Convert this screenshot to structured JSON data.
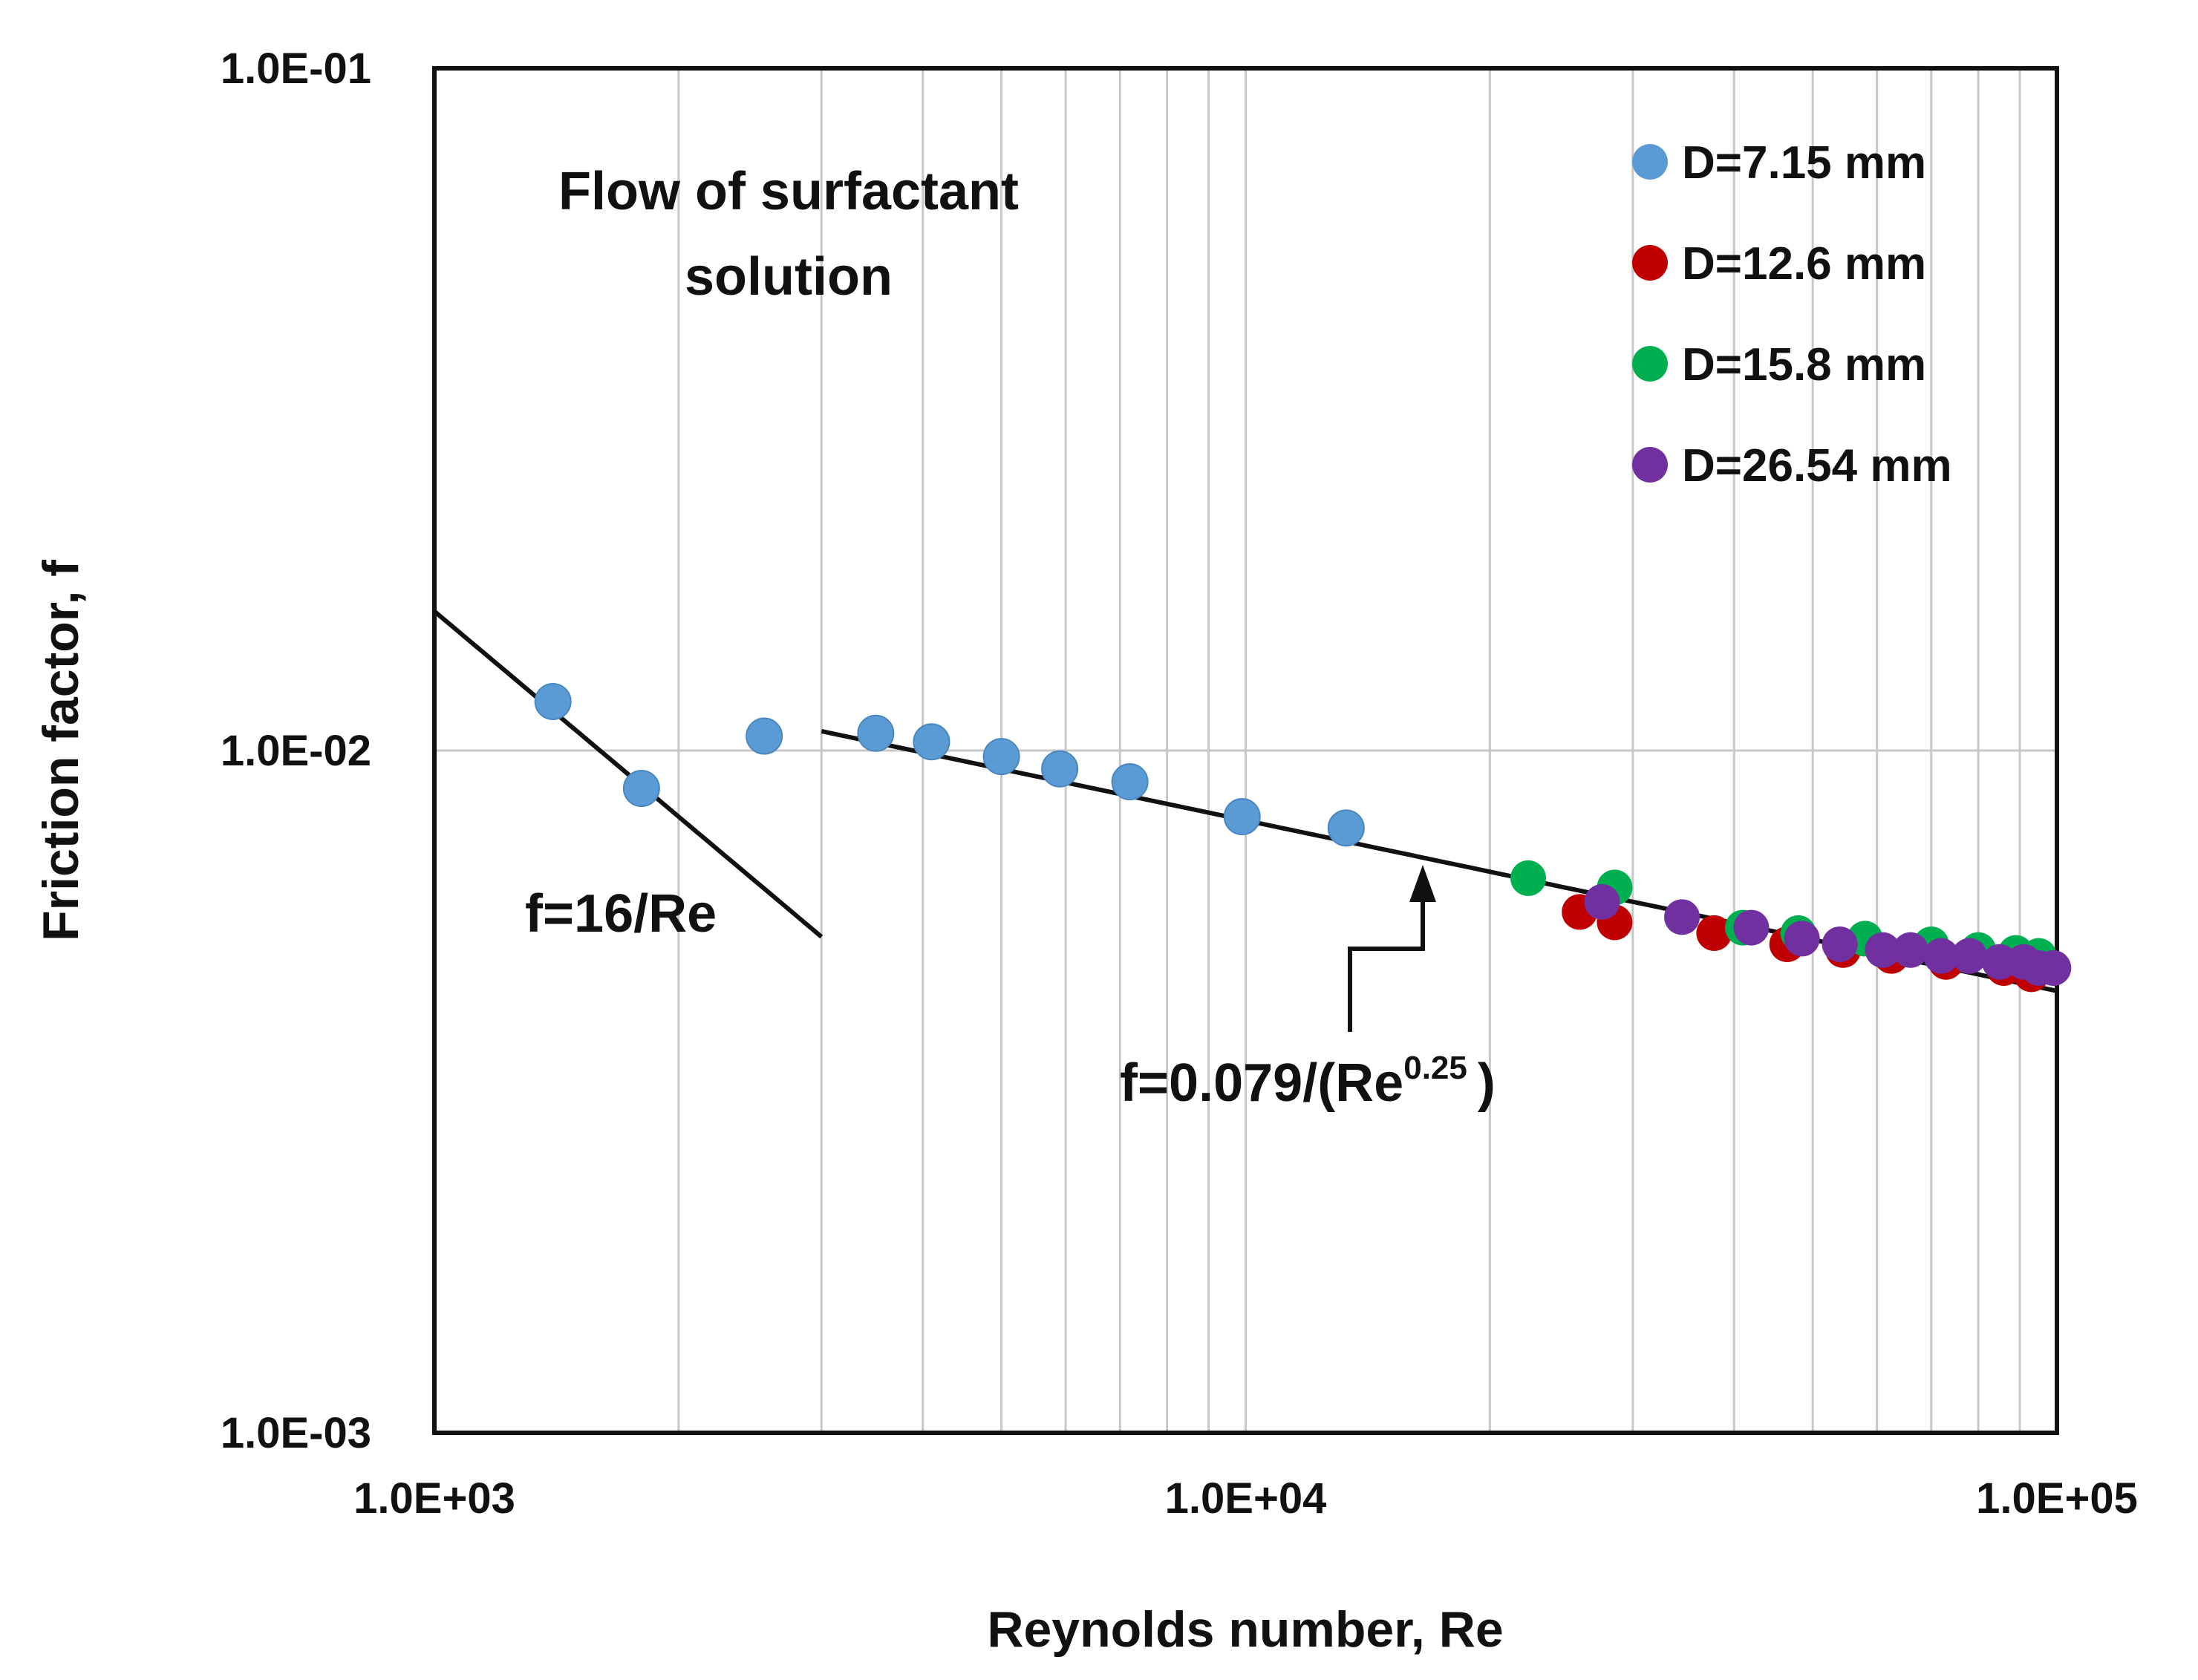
{
  "chart_data": {
    "type": "scatter",
    "title": "",
    "xlabel": "Reynolds number, Re",
    "ylabel": "Friction factor, f",
    "xscale": "log",
    "yscale": "log",
    "xlim": [
      1000,
      100000
    ],
    "ylim": [
      0.001,
      0.1
    ],
    "x_tick_labels": [
      "1.0E+03",
      "1.0E+04",
      "1.0E+05"
    ],
    "x_tick_values": [
      1000,
      10000,
      100000
    ],
    "y_tick_labels": [
      "1.0E-01",
      "1.0E-02",
      "1.0E-03"
    ],
    "y_tick_values": [
      0.1,
      0.01,
      0.001
    ],
    "grid": true,
    "legend_position": "top-right",
    "annotations": {
      "title_note_line1": "Flow of surfactant",
      "title_note_line2": "solution",
      "laminar_label": "f=16/Re",
      "turbulent_label_main": "f=0.079/(Re",
      "turbulent_label_exp": "0.25",
      "turbulent_label_close": ")"
    },
    "reference_lines": [
      {
        "name": "laminar",
        "formula": "f=16/Re",
        "x_range": [
          1000,
          3000
        ],
        "coef": 16,
        "exponent": -1
      },
      {
        "name": "turbulent",
        "formula": "f=0.079/(Re^0.25)",
        "x_range": [
          3000,
          100000
        ],
        "coef": 0.079,
        "exponent": -0.25
      }
    ],
    "series": [
      {
        "name": "D=7.15 mm",
        "color": "#5b9bd5",
        "points": [
          [
            1400,
            0.0118
          ],
          [
            1800,
            0.0088
          ],
          [
            2550,
            0.0105
          ],
          [
            3500,
            0.0106
          ],
          [
            4100,
            0.0103
          ],
          [
            5000,
            0.0098
          ],
          [
            5900,
            0.0094
          ],
          [
            7200,
            0.009
          ],
          [
            9900,
            0.008
          ],
          [
            13300,
            0.0077
          ]
        ]
      },
      {
        "name": "D=12.6 mm",
        "color": "#c00000",
        "points": [
          [
            25800,
            0.0058
          ],
          [
            28500,
            0.0056
          ],
          [
            37800,
            0.0054
          ],
          [
            46500,
            0.0052
          ],
          [
            54500,
            0.0051
          ],
          [
            62500,
            0.005
          ],
          [
            73000,
            0.0049
          ],
          [
            86000,
            0.0048
          ],
          [
            93000,
            0.0047
          ]
        ]
      },
      {
        "name": "D=15.8 mm",
        "color": "#00b050",
        "points": [
          [
            22300,
            0.0065
          ],
          [
            28500,
            0.0063
          ],
          [
            41000,
            0.0055
          ],
          [
            48000,
            0.0054
          ],
          [
            58000,
            0.0053
          ],
          [
            70000,
            0.0052
          ],
          [
            80000,
            0.0051
          ],
          [
            89000,
            0.00505
          ],
          [
            95000,
            0.005
          ]
        ]
      },
      {
        "name": "D=26.54 mm",
        "color": "#7030a0",
        "points": [
          [
            27500,
            0.006
          ],
          [
            34500,
            0.0057
          ],
          [
            42000,
            0.0055
          ],
          [
            48500,
            0.0053
          ],
          [
            54000,
            0.0052
          ],
          [
            61000,
            0.0051
          ],
          [
            66000,
            0.0051
          ],
          [
            72000,
            0.005
          ],
          [
            78000,
            0.005
          ],
          [
            85000,
            0.0049
          ],
          [
            91000,
            0.0049
          ],
          [
            95000,
            0.0048
          ],
          [
            99000,
            0.0048
          ]
        ]
      }
    ]
  }
}
